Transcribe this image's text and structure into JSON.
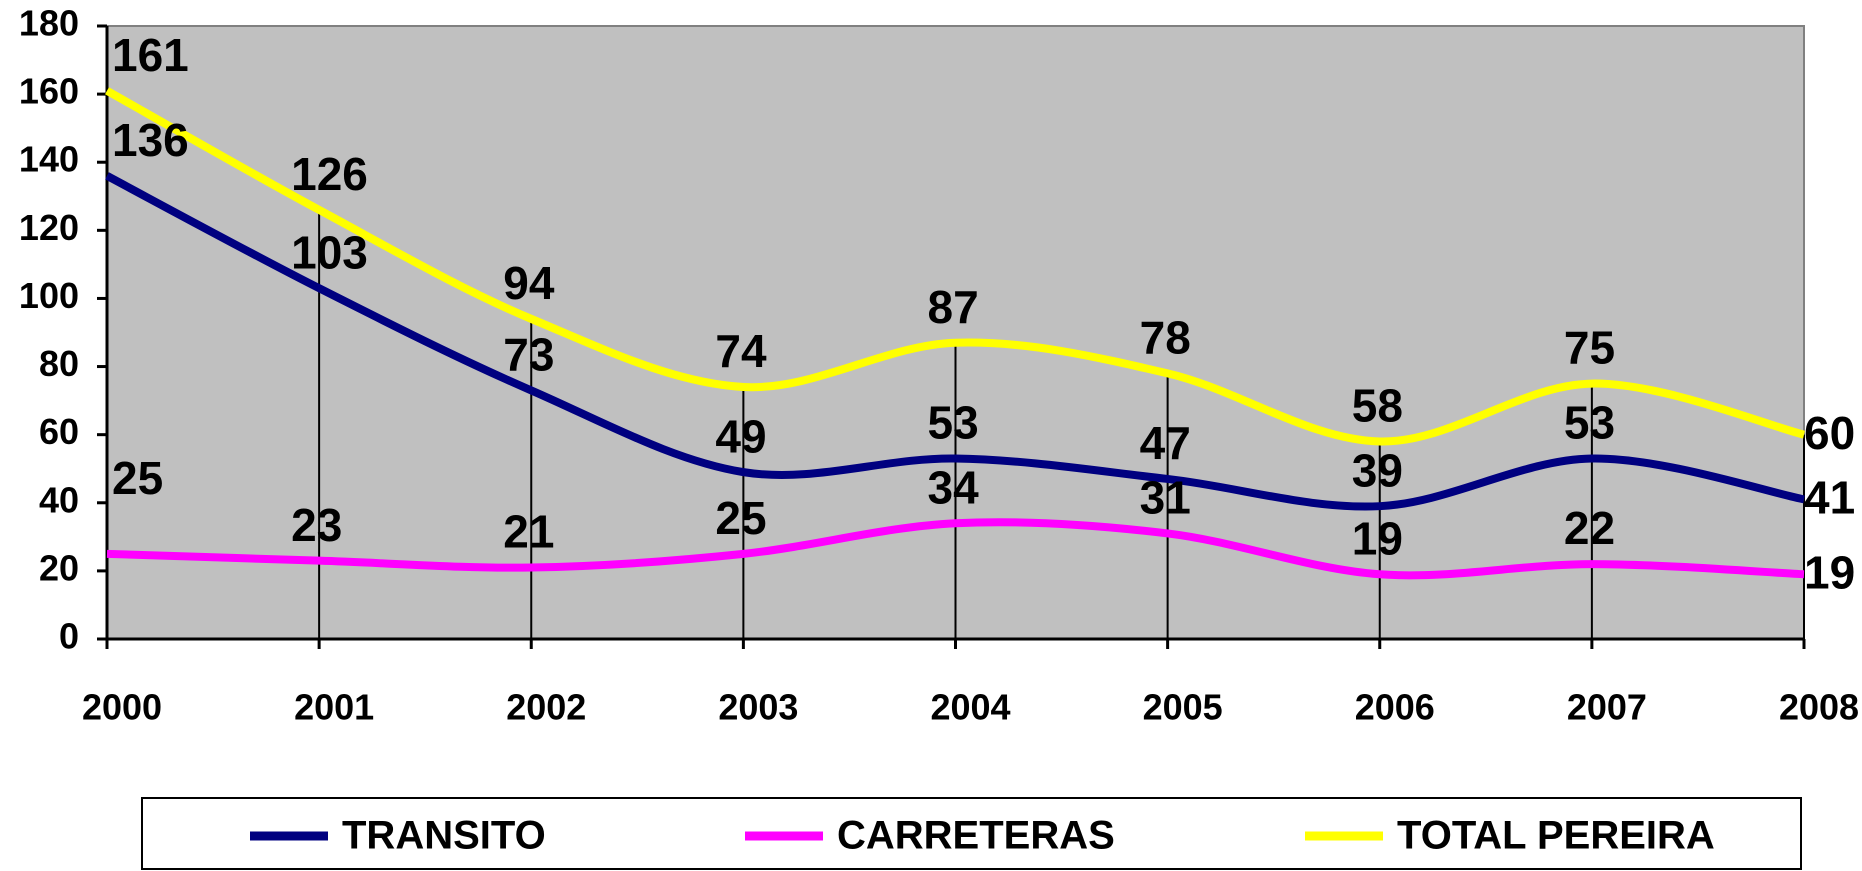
{
  "chart_data": {
    "type": "line",
    "categories": [
      "2000",
      "2001",
      "2002",
      "2003",
      "2004",
      "2005",
      "2006",
      "2007",
      "2008"
    ],
    "series": [
      {
        "name": "TRANSITO",
        "color": "#000080",
        "values": [
          136,
          103,
          73,
          49,
          53,
          47,
          39,
          53,
          41
        ]
      },
      {
        "name": "CARRETERAS",
        "color": "#ff00ff",
        "values": [
          25,
          23,
          21,
          25,
          34,
          31,
          19,
          22,
          19
        ]
      },
      {
        "name": "TOTAL PEREIRA",
        "color": "#ffff00",
        "values": [
          161,
          126,
          94,
          74,
          87,
          78,
          58,
          75,
          60
        ]
      }
    ],
    "ylim": [
      0,
      180
    ],
    "yticks": [
      0,
      20,
      40,
      60,
      80,
      100,
      120,
      140,
      160,
      180
    ],
    "plot_background": "#c0c0c0",
    "legend": "bottom",
    "drop_lines": true
  }
}
